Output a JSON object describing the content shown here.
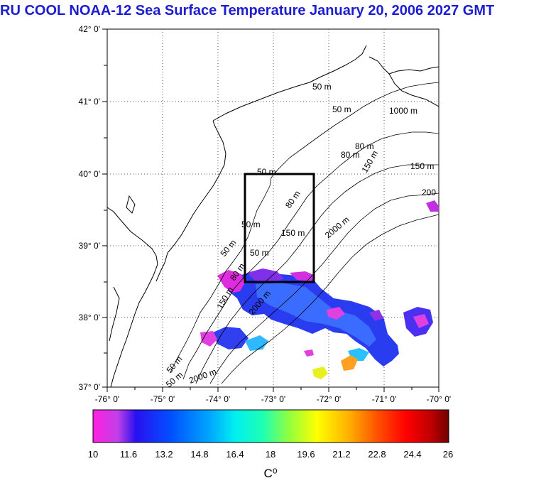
{
  "title": "RU COOL  NOAA-12 Sea Surface Temperature January 20, 2006 2027 GMT",
  "map": {
    "lon_ticks": [
      "-76° 0'",
      "-75° 0'",
      "-74° 0'",
      "-73° 0'",
      "-72° 0'",
      "-71° 0'",
      "-70° 0'"
    ],
    "lat_ticks": [
      "42° 0'",
      "41° 0'",
      "40° 0'",
      "39° 0'",
      "38° 0'",
      "37° 0'"
    ],
    "contour_labels": [
      "50 m",
      "50 m",
      "1000 m",
      "80 m",
      "80 m",
      "150 m",
      "150 m",
      "200",
      "50 m",
      "80 m",
      "50 m",
      "150 m",
      "2000 m",
      "50 m",
      "50 m",
      "80 m",
      "150 m",
      "2000 m",
      "50 m",
      "50 m",
      "2000 m"
    ],
    "study_box": {
      "lon_min": -73.45,
      "lon_max": -72.3,
      "lat_min": 38.5,
      "lat_max": 40.0
    }
  },
  "colorbar": {
    "min": 10,
    "max": 26,
    "tick_labels": [
      "10",
      "11.6",
      "13.2",
      "14.8",
      "16.4",
      "18",
      "19.6",
      "21.2",
      "22.8",
      "24.4",
      "26"
    ],
    "unit_label": "C⁰",
    "colors": [
      "#ff20e0",
      "#c040e8",
      "#2a10f0",
      "#0050ff",
      "#00a8ff",
      "#00f0f0",
      "#20ffb0",
      "#90ff40",
      "#ffff00",
      "#ffb000",
      "#ff5000",
      "#ff0000",
      "#c00000",
      "#700000"
    ]
  }
}
